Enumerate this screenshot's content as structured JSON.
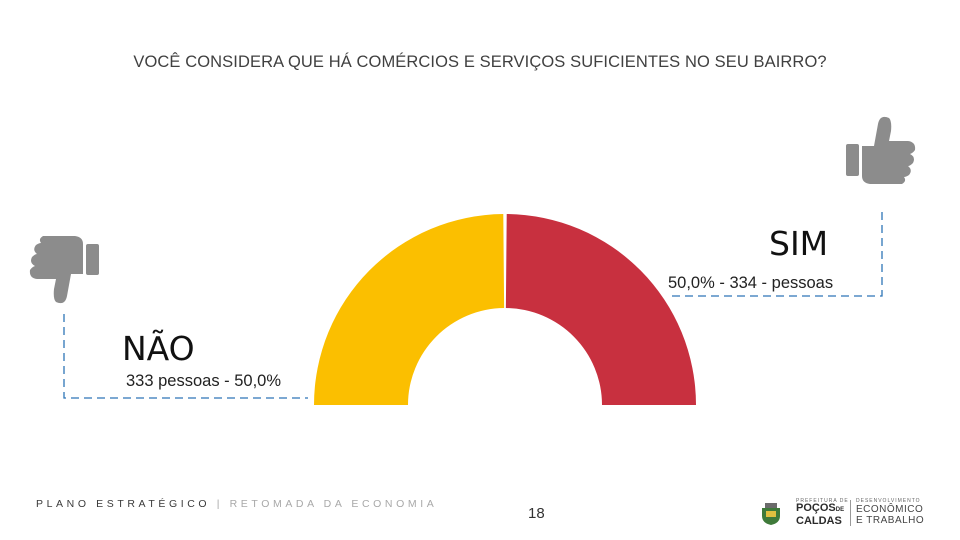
{
  "title": "VOCÊ CONSIDERA QUE HÁ COMÉRCIOS E SERVIÇOS SUFICIENTES NO SEU BAIRRO?",
  "answers": {
    "sim": {
      "label": "SIM",
      "detail": "50,0% - 334 - pessoas"
    },
    "nao": {
      "label": "NÃO",
      "detail": "333 pessoas - 50,0%"
    }
  },
  "chart_data": {
    "type": "pie",
    "variant": "half-donut",
    "title": "VOCÊ CONSIDERA QUE HÁ COMÉRCIOS E SERVIÇOS SUFICIENTES NO SEU BAIRRO?",
    "slices": [
      {
        "label": "NÃO",
        "count": 333,
        "percent": 50.0,
        "color": "#FBBF00"
      },
      {
        "label": "SIM",
        "count": 334,
        "percent": 50.0,
        "color": "#C8303F"
      }
    ]
  },
  "icons": {
    "thumbs_up": {
      "name": "thumbs-up-icon",
      "color": "#8c8c8c"
    },
    "thumbs_down": {
      "name": "thumbs-down-icon",
      "color": "#8c8c8c"
    }
  },
  "connector_color": "#2E75B6",
  "footer": {
    "plan_label": "PLANO ESTRATÉGICO",
    "separator": "|",
    "subtitle": "RETOMADA DA ECONOMIA",
    "page_number": "18"
  },
  "logo": {
    "prefecture_small": "PREFEITURA DE",
    "city_line1": "POÇOS",
    "city_de": "DE",
    "city_line2": "CALDAS",
    "dept_small": "DESENVOLVIMENTO",
    "dept_line1": "ECONÔMICO",
    "dept_line2": "E TRABALHO"
  }
}
